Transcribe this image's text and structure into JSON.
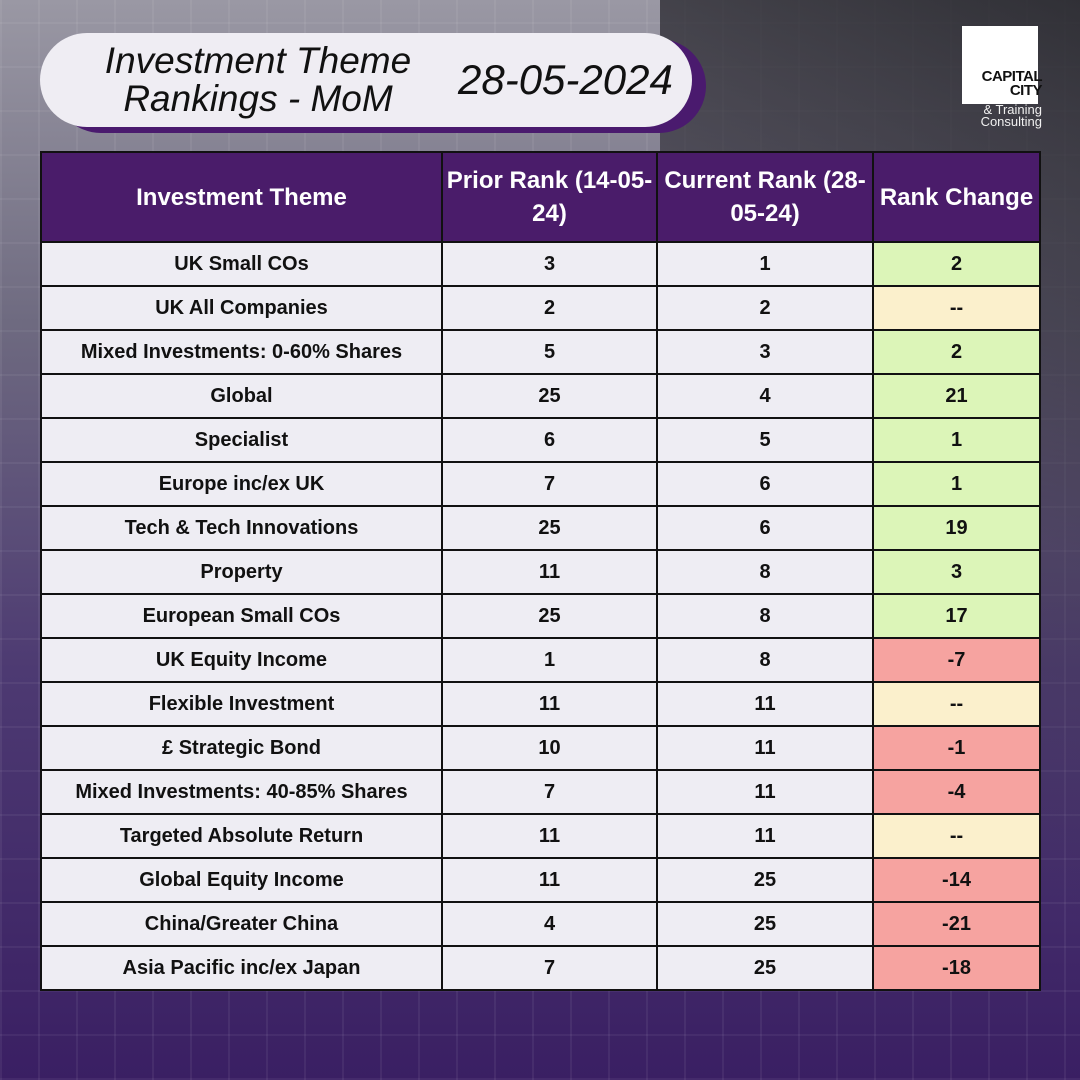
{
  "header": {
    "title": "Investment Theme Rankings - MoM",
    "date": "28-05-2024"
  },
  "logo": {
    "name": "CAPITAL CITY",
    "sub": "& Training Consulting"
  },
  "colors": {
    "header_bg": "#4a1c6a",
    "positive": "#dcf5b8",
    "neutral": "#fbf0cc",
    "negative": "#f6a3a0"
  },
  "table": {
    "columns": [
      "Investment Theme",
      "Prior Rank (14-05-24)",
      "Current Rank (28-05-24)",
      "Rank Change"
    ],
    "rows": [
      {
        "theme": "UK Small COs",
        "prior": "3",
        "current": "1",
        "change": "2",
        "status": "positive"
      },
      {
        "theme": "UK All Companies",
        "prior": "2",
        "current": "2",
        "change": "--",
        "status": "neutral"
      },
      {
        "theme": "Mixed Investments: 0-60% Shares",
        "prior": "5",
        "current": "3",
        "change": "2",
        "status": "positive"
      },
      {
        "theme": "Global",
        "prior": "25",
        "current": "4",
        "change": "21",
        "status": "positive"
      },
      {
        "theme": "Specialist",
        "prior": "6",
        "current": "5",
        "change": "1",
        "status": "positive"
      },
      {
        "theme": "Europe inc/ex UK",
        "prior": "7",
        "current": "6",
        "change": "1",
        "status": "positive"
      },
      {
        "theme": "Tech & Tech Innovations",
        "prior": "25",
        "current": "6",
        "change": "19",
        "status": "positive"
      },
      {
        "theme": "Property",
        "prior": "11",
        "current": "8",
        "change": "3",
        "status": "positive"
      },
      {
        "theme": "European Small COs",
        "prior": "25",
        "current": "8",
        "change": "17",
        "status": "positive"
      },
      {
        "theme": "UK Equity Income",
        "prior": "1",
        "current": "8",
        "change": "-7",
        "status": "negative"
      },
      {
        "theme": "Flexible Investment",
        "prior": "11",
        "current": "11",
        "change": "--",
        "status": "neutral"
      },
      {
        "theme": "£ Strategic Bond",
        "prior": "10",
        "current": "11",
        "change": "-1",
        "status": "negative"
      },
      {
        "theme": "Mixed Investments: 40-85% Shares",
        "prior": "7",
        "current": "11",
        "change": "-4",
        "status": "negative"
      },
      {
        "theme": "Targeted Absolute Return",
        "prior": "11",
        "current": "11",
        "change": "--",
        "status": "neutral"
      },
      {
        "theme": "Global Equity Income",
        "prior": "11",
        "current": "25",
        "change": "-14",
        "status": "negative"
      },
      {
        "theme": "China/Greater China",
        "prior": "4",
        "current": "25",
        "change": "-21",
        "status": "negative"
      },
      {
        "theme": "Asia Pacific inc/ex Japan",
        "prior": "7",
        "current": "25",
        "change": "-18",
        "status": "negative"
      }
    ]
  }
}
